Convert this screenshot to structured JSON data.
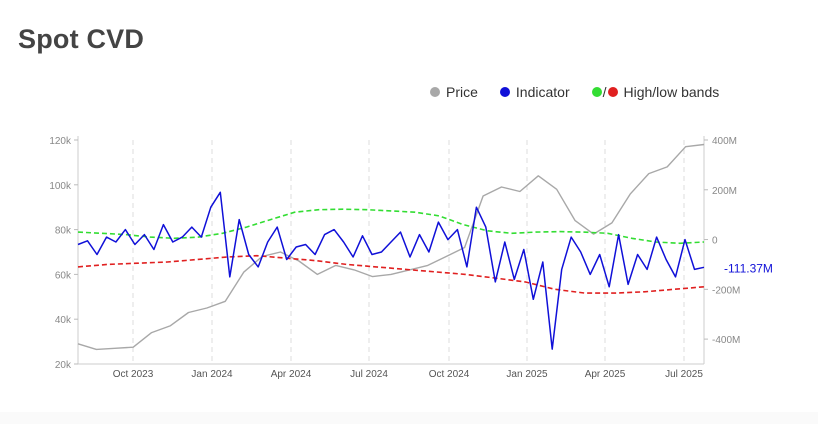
{
  "title": "Spot CVD",
  "legend": {
    "price": "Price",
    "indicator": "Indicator",
    "bands_slash": "/",
    "bands": "High/low bands"
  },
  "colors": {
    "price": "#a8a8a8",
    "indicator": "#1010d8",
    "high_band": "#33dd33",
    "low_band": "#e02020",
    "grid": "#dddddd",
    "axis_text": "#888888",
    "title": "#444444"
  },
  "chart_data": {
    "type": "line",
    "title": "Spot CVD",
    "x_labels": [
      "Oct 2023",
      "Jan 2024",
      "Apr 2024",
      "Jul 2024",
      "Oct 2024",
      "Jan 2025",
      "Apr 2025",
      "Jul 2025"
    ],
    "x_range": [
      "2023-08",
      "2025-07"
    ],
    "y_left": {
      "ticks": [
        "20k",
        "40k",
        "60k",
        "80k",
        "100k",
        "120k"
      ],
      "min": 20000,
      "max": 120000
    },
    "y_right": {
      "ticks": [
        "-400M",
        "-200M",
        "0",
        "200M",
        "400M"
      ],
      "min": -500,
      "max": 400,
      "unit": "M"
    },
    "last_value_label": "-111.37M",
    "series": [
      {
        "name": "Price",
        "axis": "left",
        "values": [
          29000,
          26500,
          27000,
          27500,
          34000,
          37000,
          43000,
          45000,
          48000,
          61000,
          68000,
          70000,
          66000,
          60000,
          64000,
          62000,
          59000,
          60000,
          62000,
          64000,
          68000,
          72000,
          95000,
          99000,
          97000,
          104000,
          98000,
          84000,
          78000,
          83000,
          96000,
          105000,
          108000,
          117000,
          118000
        ]
      },
      {
        "name": "Indicator",
        "axis": "right",
        "values": [
          -20,
          -5,
          -60,
          10,
          -10,
          40,
          -20,
          20,
          -40,
          60,
          -10,
          10,
          50,
          10,
          130,
          190,
          -150,
          80,
          -60,
          -110,
          -10,
          50,
          -80,
          -30,
          -20,
          -60,
          20,
          40,
          -10,
          -70,
          15,
          -60,
          -50,
          -10,
          30,
          -70,
          20,
          -50,
          70,
          0,
          40,
          -110,
          130,
          50,
          -170,
          -10,
          -160,
          -40,
          -240,
          -90,
          -440,
          -120,
          10,
          -50,
          -140,
          -60,
          -190,
          20,
          -180,
          -60,
          -120,
          10,
          -80,
          -150,
          0,
          -120,
          -111.37
        ]
      },
      {
        "name": "High band",
        "axis": "right",
        "values": [
          30,
          25,
          20,
          10,
          5,
          10,
          25,
          50,
          80,
          110,
          120,
          122,
          120,
          115,
          110,
          95,
          60,
          35,
          25,
          30,
          32,
          30,
          25,
          5,
          -10,
          -15,
          -10
        ]
      },
      {
        "name": "Low band",
        "axis": "right",
        "values": [
          -110,
          -100,
          -95,
          -90,
          -80,
          -70,
          -65,
          -75,
          -85,
          -100,
          -110,
          -120,
          -130,
          -140,
          -155,
          -170,
          -200,
          -215,
          -215,
          -210,
          -200,
          -190
        ]
      }
    ],
    "grid": true,
    "legend_position": "top-right"
  }
}
